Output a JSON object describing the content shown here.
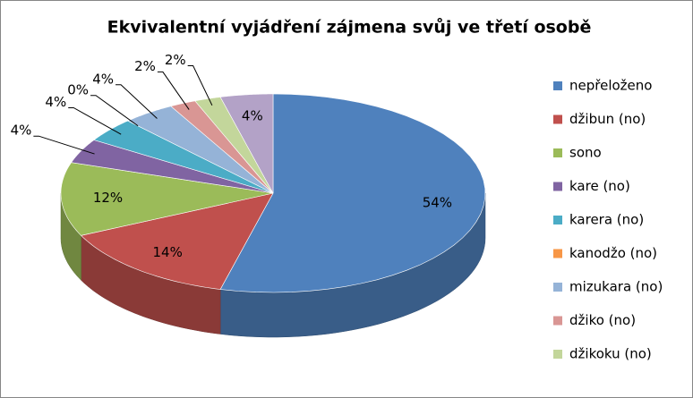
{
  "chart_data": {
    "type": "pie",
    "three_d": true,
    "title": "Ekvivalentní vyjádření zájmena svůj ve třetí osobě",
    "categories": [
      "nepřeloženo",
      "džibun (no)",
      "sono",
      "kare (no)",
      "karera (no)",
      "kanodžo (no)",
      "mizukara (no)",
      "džiko (no)",
      "džikoku (no)",
      null
    ],
    "values": [
      54,
      14,
      12,
      4,
      4,
      0,
      4,
      2,
      2,
      4
    ],
    "value_labels": [
      "54%",
      "14%",
      "12%",
      "4%",
      "4%",
      "0%",
      "4%",
      "2%",
      "2%",
      "4%"
    ],
    "colors": [
      "#4F81BD",
      "#C0504D",
      "#9BBB59",
      "#8064A2",
      "#4BACC6",
      "#F79646",
      "#95B3D7",
      "#D99694",
      "#C3D69B",
      "#B3A2C7"
    ],
    "legend": "right"
  }
}
